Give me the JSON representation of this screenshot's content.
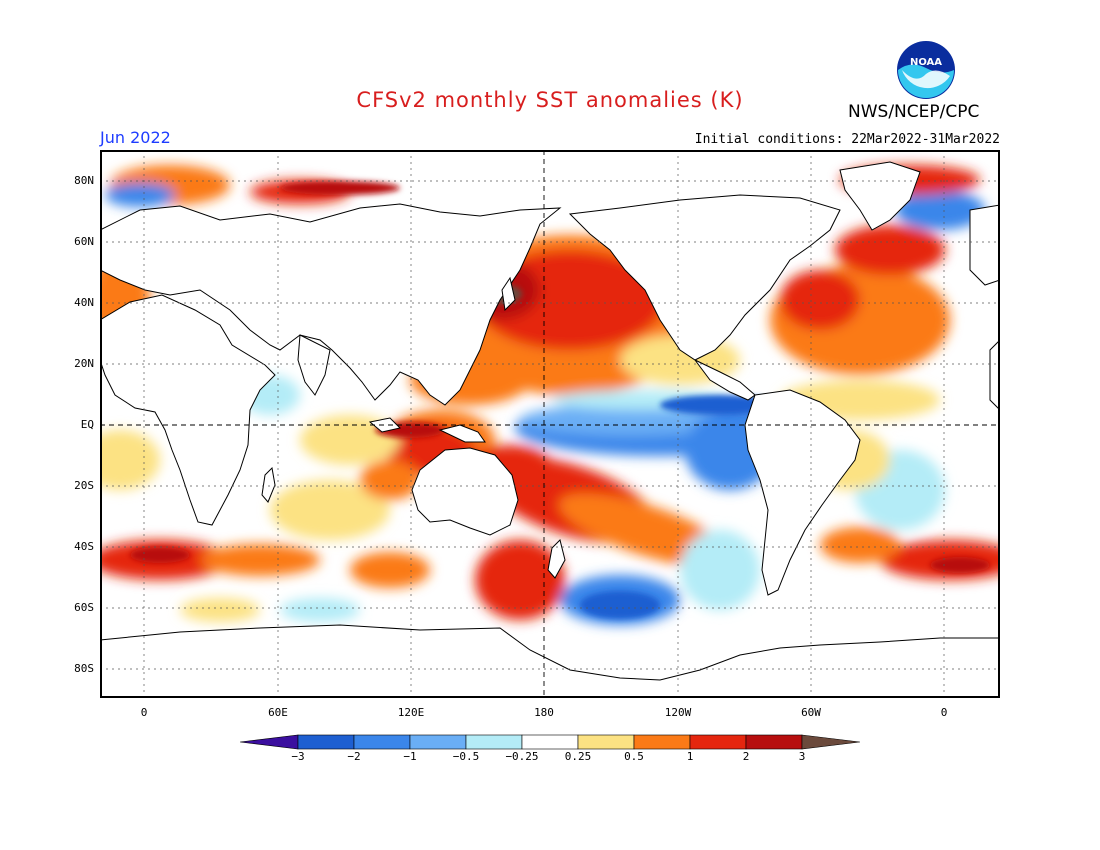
{
  "header": {
    "title": "CFSv2 monthly SST anomalies (K)",
    "month": "Jun 2022",
    "initial_conditions": "Initial conditions: 22Mar2022-31Mar2022",
    "agency": "NWS/NCEP/CPC",
    "logo_text": "NOAA"
  },
  "map": {
    "lat_labels": [
      "80N",
      "60N",
      "40N",
      "20N",
      "EQ",
      "20S",
      "40S",
      "60S",
      "80S"
    ],
    "lon_labels": [
      "0",
      "60E",
      "120E",
      "180",
      "120W",
      "60W",
      "0"
    ],
    "colors": {
      "land": "#ffffff",
      "coast": "#000000"
    }
  },
  "colorbar": {
    "labels": [
      "−3",
      "−2",
      "−1",
      "−0.5",
      "−0.25",
      "0.25",
      "0.5",
      "1",
      "2",
      "3"
    ],
    "colors": [
      "#3b0f9f",
      "#1e5fd1",
      "#3b86ea",
      "#6aaef5",
      "#b4ecf7",
      "#ffffff",
      "#fce283",
      "#fb7a17",
      "#e5260e",
      "#b70e0e",
      "#6b4a3c"
    ]
  }
}
